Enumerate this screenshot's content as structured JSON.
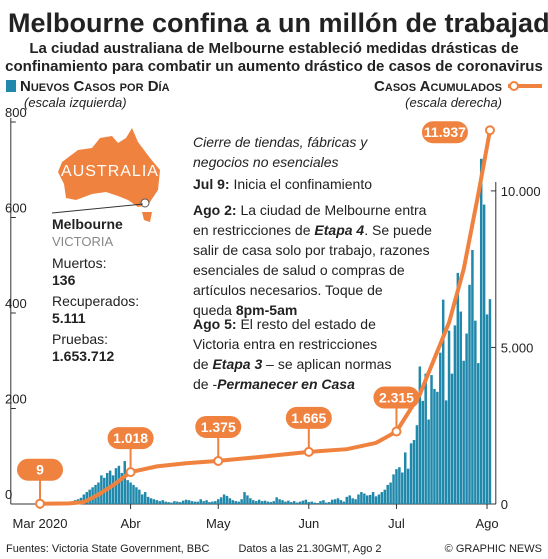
{
  "chart_data": {
    "type": "bar-line",
    "title": "Melbourne confina a un millón de trabajadores",
    "subtitle": [
      "La ciudad australiana de Melbourne estableció medidas drásticas de",
      "confinamiento para combatir un aumento drástico de casos de coronavirus"
    ],
    "xlim": [
      -10,
      156
    ],
    "xticks": [
      {
        "value": 0,
        "label": "Mar 2020"
      },
      {
        "value": 31,
        "label": "Abr"
      },
      {
        "value": 61,
        "label": "May"
      },
      {
        "value": 92,
        "label": "Jun"
      },
      {
        "value": 122,
        "label": "Jul"
      },
      {
        "value": 153,
        "label": "Ago"
      }
    ],
    "ylim": [
      0,
      800
    ],
    "yticks": [
      0,
      200,
      400,
      600,
      800
    ],
    "y2lim": [
      0,
      12200
    ],
    "y2ticks": [
      0,
      {
        "value": 5000,
        "label": "5.000"
      },
      {
        "value": 10000,
        "label": "10.000"
      }
    ],
    "grid": false,
    "series": [
      {
        "name": "Nuevos Casos por Día",
        "note": "(escala izquierda)",
        "color": "#1f88ab",
        "kind": "bar",
        "x": [
          0,
          1,
          2,
          3,
          4,
          5,
          6,
          7,
          8,
          9,
          10,
          11,
          12,
          13,
          14,
          15,
          16,
          17,
          18,
          19,
          20,
          21,
          22,
          23,
          24,
          25,
          26,
          27,
          28,
          29,
          30,
          31,
          32,
          33,
          34,
          35,
          36,
          37,
          38,
          39,
          40,
          41,
          42,
          43,
          44,
          45,
          46,
          47,
          48,
          49,
          50,
          51,
          52,
          53,
          54,
          55,
          56,
          57,
          58,
          59,
          60,
          61,
          62,
          63,
          64,
          65,
          66,
          67,
          68,
          69,
          70,
          71,
          72,
          73,
          74,
          75,
          76,
          77,
          78,
          79,
          80,
          81,
          82,
          83,
          84,
          85,
          86,
          87,
          88,
          89,
          90,
          91,
          92,
          93,
          94,
          95,
          96,
          97,
          98,
          99,
          100,
          101,
          102,
          103,
          104,
          105,
          106,
          107,
          108,
          109,
          110,
          111,
          112,
          113,
          114,
          115,
          116,
          117,
          118,
          119,
          120,
          121,
          122,
          123,
          124,
          125,
          126,
          127,
          128,
          129,
          130,
          131,
          132,
          133,
          134,
          135,
          136,
          137,
          138,
          139,
          140,
          141,
          142,
          143,
          144,
          145,
          146,
          147,
          148,
          149,
          150,
          151,
          152,
          153,
          154
        ],
        "values": [
          0,
          0,
          1,
          0,
          1,
          2,
          1,
          1,
          3,
          2,
          3,
          5,
          8,
          10,
          13,
          20,
          25,
          30,
          35,
          40,
          45,
          60,
          55,
          65,
          70,
          60,
          75,
          80,
          65,
          90,
          50,
          45,
          40,
          35,
          30,
          20,
          25,
          15,
          12,
          10,
          8,
          6,
          8,
          5,
          4,
          3,
          6,
          5,
          4,
          7,
          9,
          8,
          6,
          5,
          5,
          10,
          6,
          8,
          4,
          5,
          6,
          10,
          14,
          20,
          17,
          12,
          8,
          6,
          5,
          10,
          25,
          18,
          12,
          8,
          6,
          9,
          6,
          7,
          5,
          4,
          6,
          14,
          10,
          8,
          5,
          7,
          4,
          6,
          3,
          5,
          7,
          9,
          4,
          5,
          3,
          2,
          6,
          8,
          3,
          4,
          9,
          10,
          12,
          8,
          5,
          15,
          18,
          12,
          10,
          20,
          25,
          22,
          18,
          19,
          25,
          16,
          20,
          25,
          30,
          40,
          45,
          62,
          73,
          77,
          66,
          108,
          74,
          127,
          134,
          165,
          288,
          216,
          273,
          177,
          270,
          241,
          235,
          317,
          428,
          217,
          363,
          273,
          374,
          484,
          403,
          300,
          357,
          459,
          532,
          384,
          295,
          723,
          627,
          397,
          429
        ]
      },
      {
        "name": "Casos Acumulados",
        "note": "(escala derecha)",
        "color": "#f0823f",
        "kind": "line",
        "axis": "y2",
        "x": [
          0,
          10,
          15,
          20,
          25,
          31,
          40,
          50,
          61,
          75,
          92,
          105,
          115,
          122,
          130,
          140,
          145,
          150,
          154
        ],
        "values": [
          9,
          20,
          60,
          300,
          600,
          1018,
          1200,
          1300,
          1375,
          1500,
          1665,
          1750,
          1950,
          2315,
          3500,
          5800,
          7500,
          9900,
          11937
        ],
        "value_labels": [
          "9",
          null,
          null,
          null,
          null,
          "1.018",
          null,
          null,
          "1.375",
          null,
          "1.665",
          null,
          null,
          "2.315",
          null,
          null,
          null,
          null,
          "11.937"
        ]
      }
    ],
    "map_label": "AUSTRALIA",
    "city": "Melbourne",
    "state": "VICTORIA",
    "stats": [
      {
        "label": "Muertos:",
        "value": "136"
      },
      {
        "label": "Recuperados:",
        "value": "5.111"
      },
      {
        "label": "Pruebas:",
        "value": "1.653.712"
      }
    ],
    "annotations": [
      [
        [
          {
            "text": "Cierre de tiendas, fábricas y",
            "style": "i"
          }
        ],
        [
          {
            "text": "negocios no esenciales",
            "style": "i"
          }
        ]
      ],
      [
        [
          {
            "text": "Jul 9:",
            "style": "b"
          },
          {
            "text": " Inicia el confinamiento",
            "style": "n"
          }
        ]
      ],
      [
        [
          {
            "text": "Ago 2:",
            "style": "b"
          },
          {
            "text": " La ciudad de Melbourne entra",
            "style": "n"
          }
        ],
        [
          {
            "text": "en restricciones de ",
            "style": "n"
          },
          {
            "text": "Etapa 4",
            "style": "bi"
          },
          {
            "text": ". Se puede",
            "style": "n"
          }
        ],
        [
          {
            "text": "salir de casa solo por trabajo, razones",
            "style": "n"
          }
        ],
        [
          {
            "text": "esenciales de salud o compras de",
            "style": "n"
          }
        ],
        [
          {
            "text": "artículos necesarios. Toque de",
            "style": "n"
          }
        ],
        [
          {
            "text": "queda ",
            "style": "n"
          },
          {
            "text": "8pm-5am",
            "style": "b"
          }
        ]
      ],
      [
        [
          {
            "text": "Ago 5:",
            "style": "b"
          },
          {
            "text": " El resto del estado de",
            "style": "n"
          }
        ],
        [
          {
            "text": "Victoria entra en restricciones",
            "style": "n"
          }
        ],
        [
          {
            "text": "de ",
            "style": "n"
          },
          {
            "text": "Etapa 3",
            "style": "bi"
          },
          {
            "text": " – se aplican normas",
            "style": "n"
          }
        ],
        [
          {
            "text": "de -",
            "style": "n"
          },
          {
            "text": "Permanecer en Casa",
            "style": "bi"
          }
        ]
      ]
    ],
    "footer": {
      "source": "Fuentes: Victoria State Government, BBC",
      "date": "Datos a las 21.30GMT, Ago  2",
      "credit": "© GRAPHIC NEWS"
    }
  }
}
